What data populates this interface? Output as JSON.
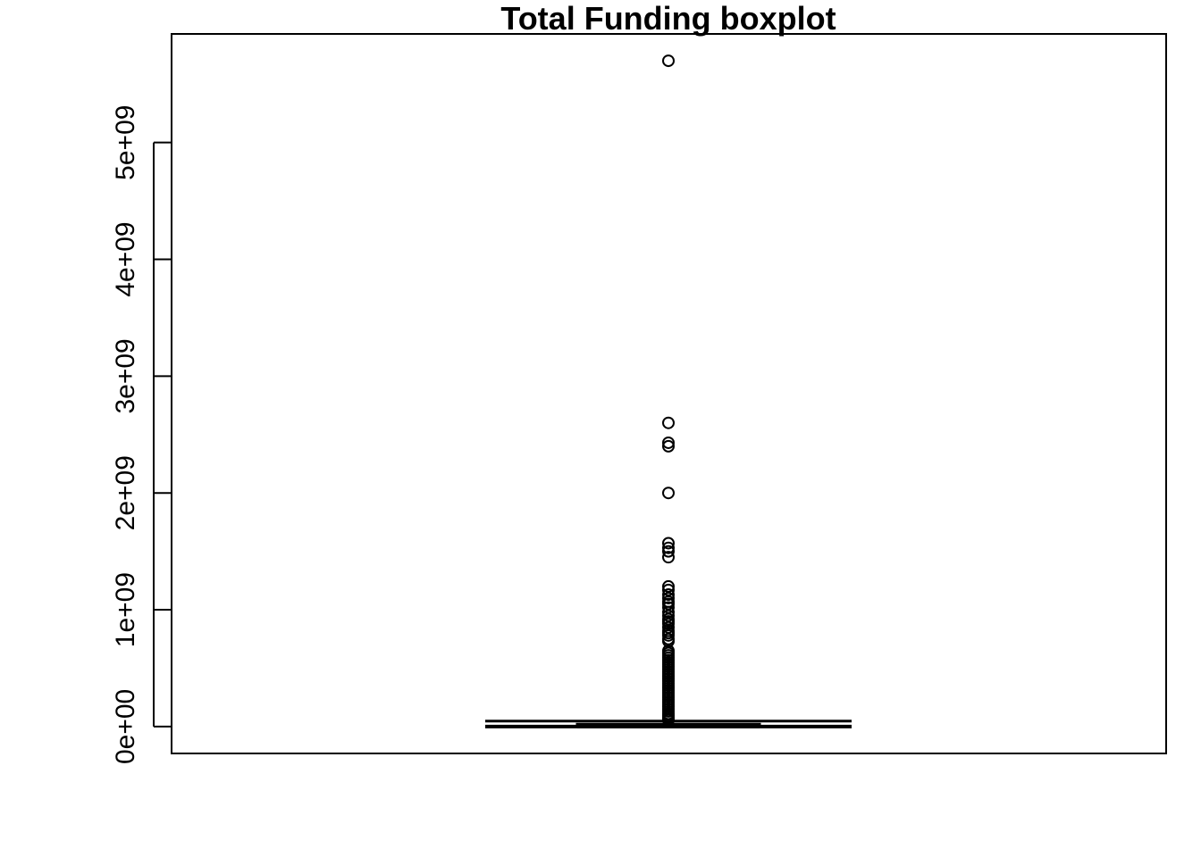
{
  "chart_data": {
    "type": "boxplot",
    "title": "Total Funding boxplot",
    "xlabel": "",
    "ylabel": "",
    "ylim": [
      -230000000,
      5930000000
    ],
    "yticks": [
      0,
      1000000000,
      2000000000,
      3000000000,
      4000000000,
      5000000000
    ],
    "ytick_labels": [
      "0e+00",
      "1e+09",
      "2e+09",
      "3e+09",
      "4e+09",
      "5e+09"
    ],
    "grid": false,
    "box": {
      "whisker_low": 0,
      "q1": 1500000,
      "median": 5000000,
      "q3": 20000000,
      "whisker_high": 47000000
    },
    "outliers": [
      5700000000,
      2600000000,
      2430000000,
      2400000000,
      2000000000,
      1570000000,
      1530000000,
      1500000000,
      1450000000,
      1200000000,
      1170000000,
      1130000000,
      1100000000,
      1070000000,
      1050000000,
      1020000000,
      980000000,
      950000000,
      920000000,
      900000000,
      880000000,
      850000000,
      820000000,
      800000000,
      780000000,
      750000000,
      730000000,
      650000000,
      630000000,
      610000000,
      590000000,
      570000000,
      550000000,
      530000000,
      510000000,
      490000000,
      470000000,
      450000000,
      430000000,
      410000000,
      390000000,
      370000000,
      350000000,
      330000000,
      310000000,
      290000000,
      270000000,
      250000000,
      230000000,
      210000000,
      190000000,
      170000000,
      150000000,
      130000000,
      110000000,
      95000000,
      80000000,
      65000000,
      55000000
    ],
    "colors": {
      "stroke": "#000000",
      "background": "#ffffff"
    }
  }
}
